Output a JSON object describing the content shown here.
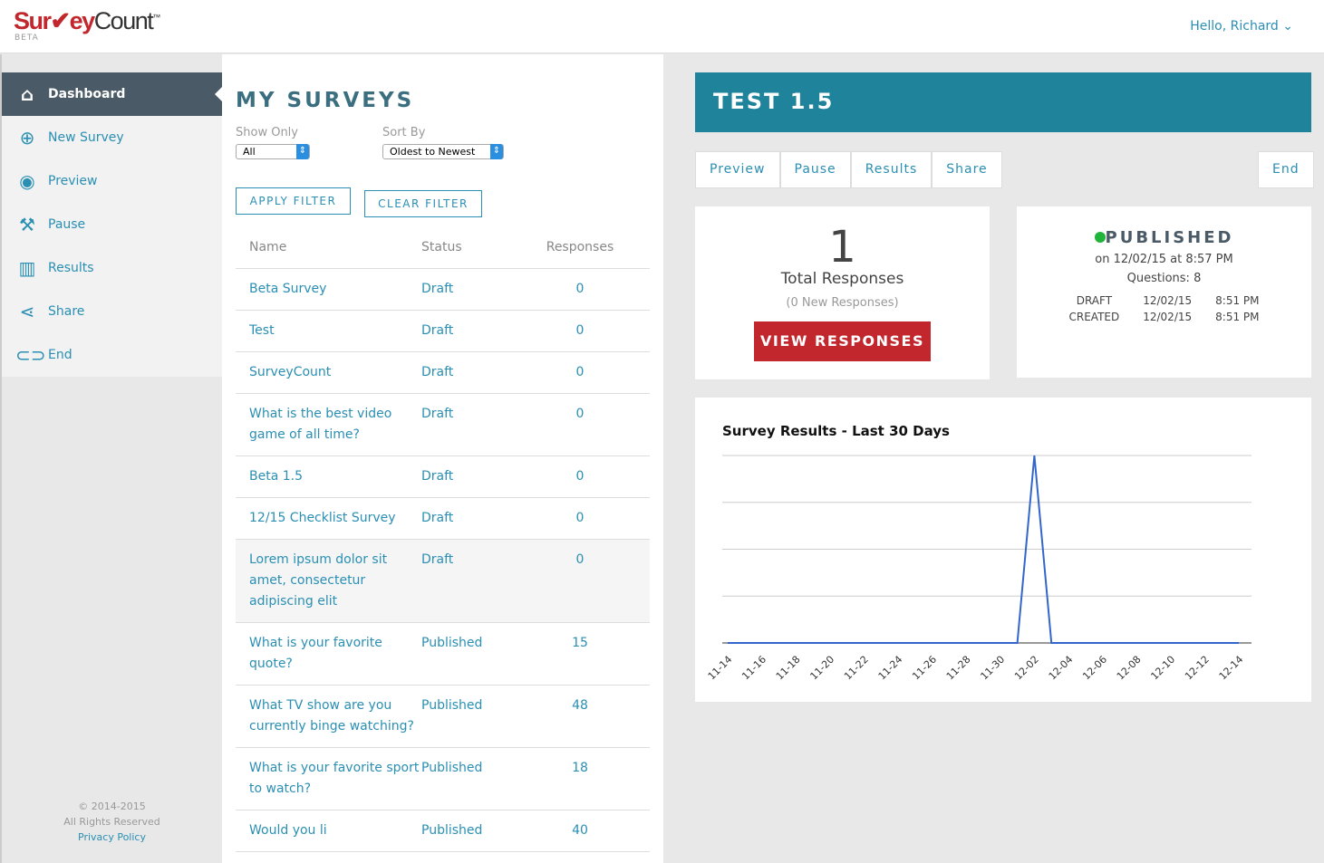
{
  "header": {
    "logo": "SurveyCount",
    "beta": "BETA",
    "greeting": "Hello, Richard"
  },
  "sidebar": {
    "items": [
      {
        "label": "Dashboard",
        "icon": "home-icon"
      },
      {
        "label": "New Survey",
        "icon": "plus-circle-icon"
      },
      {
        "label": "Preview",
        "icon": "eye-icon"
      },
      {
        "label": "Pause",
        "icon": "wrench-icon"
      },
      {
        "label": "Results",
        "icon": "bar-chart-icon"
      },
      {
        "label": "Share",
        "icon": "share-icon"
      },
      {
        "label": "End",
        "icon": "toggle-icon"
      }
    ],
    "footer": {
      "copyright": "© 2014-2015",
      "rights": "All Rights Reserved",
      "privacy": "Privacy Policy"
    }
  },
  "surveys": {
    "title": "MY SURVEYS",
    "show_only_label": "Show Only",
    "show_only_value": "All",
    "sort_label": "Sort By",
    "sort_value": "Oldest to Newest",
    "apply": "APPLY FILTER",
    "clear": "CLEAR FILTER",
    "columns": [
      "Name",
      "Status",
      "Responses"
    ],
    "rows": [
      [
        "Beta Survey",
        "Draft",
        "0"
      ],
      [
        "Test",
        "Draft",
        "0"
      ],
      [
        "SurveyCount",
        "Draft",
        "0"
      ],
      [
        "What is the best video game of all time?",
        "Draft",
        "0"
      ],
      [
        "Beta 1.5",
        "Draft",
        "0"
      ],
      [
        "12/15 Checklist Survey",
        "Draft",
        "0"
      ],
      [
        "Lorem ipsum dolor sit amet, consectetur adipiscing elit",
        "Draft",
        "0"
      ],
      [
        "What is your favorite quote?",
        "Published",
        "15"
      ],
      [
        "What TV show are you currently binge watching?",
        "Published",
        "48"
      ],
      [
        "What is your favorite sport to watch?",
        "Published",
        "18"
      ],
      [
        "Would you li",
        "Published",
        "40"
      ]
    ]
  },
  "detail": {
    "title": "TEST 1.5",
    "tabs": [
      "Preview",
      "Pause",
      "Results",
      "Share"
    ],
    "end": "End",
    "responses": {
      "count": "1",
      "label": "Total Responses",
      "new": "(0 New Responses)",
      "button": "VIEW RESPONSES"
    },
    "status": {
      "state": "PUBLISHED",
      "dot_color": "#22b33a",
      "on": "on 12/02/15 at 8:57 PM",
      "questions": "Questions: 8",
      "history": [
        [
          "DRAFT",
          "12/02/15",
          "8:51 PM"
        ],
        [
          "CREATED",
          "12/02/15",
          "8:51 PM"
        ]
      ]
    }
  },
  "chart_data": {
    "type": "line",
    "title": "Survey Results - Last 30 Days",
    "x": [
      "11-14",
      "11-15",
      "11-16",
      "11-17",
      "11-18",
      "11-19",
      "11-20",
      "11-21",
      "11-22",
      "11-23",
      "11-24",
      "11-25",
      "11-26",
      "11-27",
      "11-28",
      "11-29",
      "11-30",
      "12-01",
      "12-02",
      "12-03",
      "12-04",
      "12-05",
      "12-06",
      "12-07",
      "12-08",
      "12-09",
      "12-10",
      "12-11",
      "12-12",
      "12-13",
      "12-14"
    ],
    "values": [
      0,
      0,
      0,
      0,
      0,
      0,
      0,
      0,
      0,
      0,
      0,
      0,
      0,
      0,
      0,
      0,
      0,
      0,
      1,
      0,
      0,
      0,
      0,
      0,
      0,
      0,
      0,
      0,
      0,
      0,
      0
    ],
    "tick_labels": [
      "11-14",
      "11-16",
      "11-18",
      "11-20",
      "11-22",
      "11-24",
      "11-26",
      "11-28",
      "11-30",
      "12-02",
      "12-04",
      "12-06",
      "12-08",
      "12-10",
      "12-12",
      "12-14"
    ],
    "ylim": [
      0,
      1
    ],
    "grid": true,
    "color": "#3366cc"
  }
}
